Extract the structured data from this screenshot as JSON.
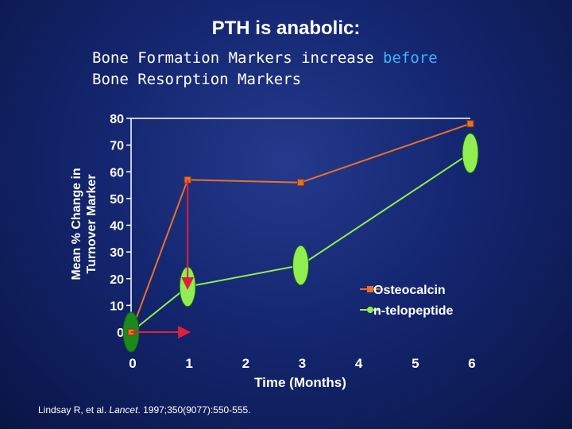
{
  "slide": {
    "title": "PTH is anabolic:",
    "subtitle_line1_pre": "Bone Formation Markers increase ",
    "subtitle_line1_highlight": "before",
    "subtitle_line2": "Bone Resorption Markers",
    "highlight_color": "#3fb4ff",
    "citation_pre": "Lindsay R, et al. ",
    "citation_journal": "Lancet",
    "citation_post": ". 1997;350(9077):550-555."
  },
  "chart_data": {
    "type": "line",
    "ylabel_line1": "Mean % Change in",
    "ylabel_line2": "Turnover Marker",
    "xlabel": "Time (Months)",
    "xlim": [
      0,
      6
    ],
    "ylim": [
      0,
      80
    ],
    "yticks": [
      0,
      10,
      20,
      30,
      40,
      50,
      60,
      70,
      80
    ],
    "xticks": [
      "0",
      "1",
      "2",
      "3",
      "4",
      "5",
      "6"
    ],
    "legend_position": "right",
    "series": [
      {
        "name": "Osteocalcin",
        "color": "#e8702a",
        "marker": "square",
        "x": [
          0,
          1,
          3,
          6
        ],
        "values": [
          0,
          57,
          56,
          78
        ]
      },
      {
        "name": "n-telopeptide",
        "color": "#90ee50",
        "marker": "ellipse",
        "x": [
          0,
          1,
          3,
          6
        ],
        "values": [
          0,
          17,
          25,
          67
        ]
      }
    ],
    "annotations": [
      {
        "type": "arrow",
        "from": [
          0,
          0
        ],
        "to": [
          1,
          0
        ],
        "color": "#e0203a"
      },
      {
        "type": "arrow",
        "from": [
          1,
          57
        ],
        "to": [
          1,
          17
        ],
        "color": "#e0203a"
      }
    ]
  }
}
